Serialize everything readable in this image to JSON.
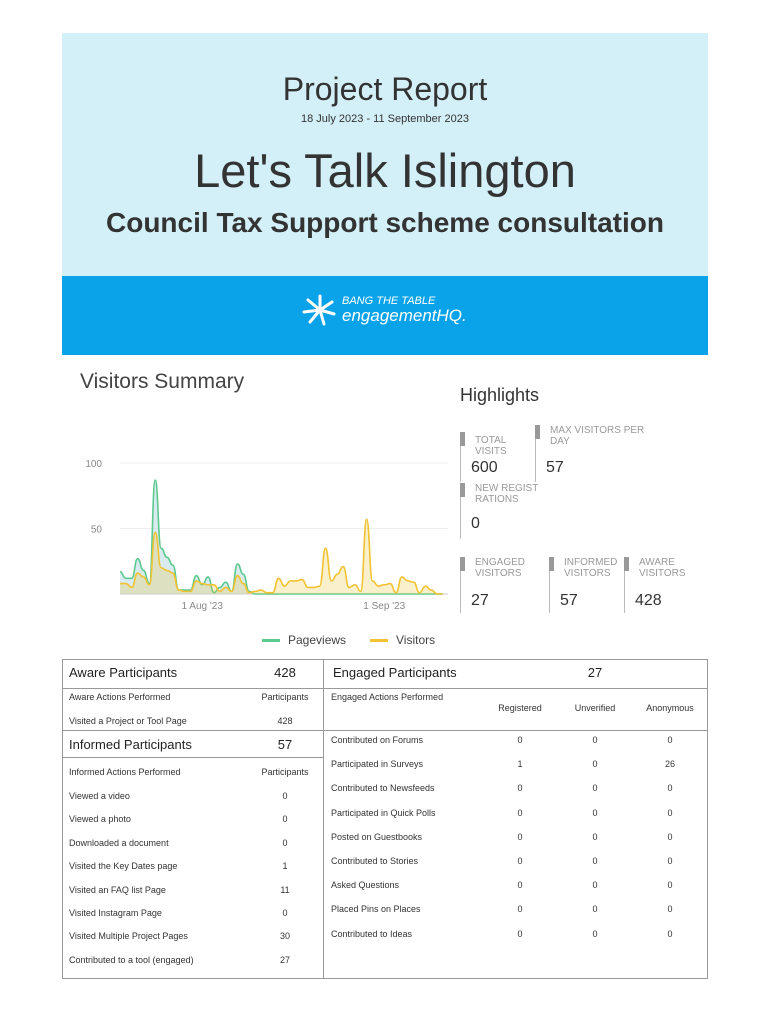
{
  "header": {
    "title": "Project Report",
    "date_range": "18 July 2023 - 11 September 2023",
    "project": "Let's Talk Islington",
    "subtitle": "Council Tax Support scheme consultation"
  },
  "logo": {
    "line1": "BANG THE TABLE",
    "line2": "engagementHQ."
  },
  "visitors_summary": {
    "title": "Visitors Summary"
  },
  "chart_data": {
    "type": "area",
    "title": "Visitors Summary",
    "ylim": [
      0,
      100
    ],
    "yticks": [
      "100",
      "50"
    ],
    "xticks": [
      {
        "label": "1 Aug '23",
        "day": 14
      },
      {
        "label": "1 Sep '23",
        "day": 45
      }
    ],
    "start": "2023-07-18",
    "series": [
      {
        "name": "Pageviews",
        "color": "#5cc98f",
        "values": [
          17,
          12,
          12,
          27,
          18,
          8,
          87,
          35,
          28,
          22,
          3,
          3,
          3,
          14,
          7,
          13,
          1,
          5,
          9,
          2,
          23,
          15,
          2,
          0,
          0,
          0,
          0,
          0,
          0,
          0,
          0,
          0,
          0,
          0,
          0,
          0,
          0,
          0,
          0,
          0,
          0,
          0,
          0,
          0,
          0,
          0,
          0,
          0,
          0,
          0,
          0,
          0,
          0,
          0,
          0,
          0
        ]
      },
      {
        "name": "Visitors",
        "color": "#f1c232",
        "values": [
          8,
          8,
          5,
          16,
          13,
          7,
          47,
          20,
          18,
          16,
          3,
          2,
          2,
          10,
          8,
          7,
          7,
          2,
          5,
          2,
          14,
          8,
          1,
          2,
          3,
          1,
          1,
          12,
          6,
          10,
          10,
          11,
          5,
          5,
          6,
          35,
          10,
          15,
          21,
          5,
          7,
          2,
          57,
          10,
          6,
          7,
          8,
          1,
          13,
          10,
          9,
          1,
          6,
          3,
          0,
          0
        ]
      }
    ]
  },
  "highlights": {
    "title": "Highlights",
    "items": [
      {
        "label": "Total Visits",
        "value": "600"
      },
      {
        "label": "Max Visitors Per Day",
        "value": "57"
      },
      {
        "label": "New Registrations",
        "value": "0"
      },
      {
        "label": "Engaged Visitors",
        "value": "27"
      },
      {
        "label": "Informed Visitors",
        "value": "57"
      },
      {
        "label": "Aware Visitors",
        "value": "428"
      }
    ]
  },
  "aware": {
    "title": "Aware Participants",
    "count": "428",
    "col1": "Aware Actions Performed",
    "col2": "Participants",
    "rows": [
      {
        "action": "Visited a Project or Tool Page",
        "value": "428"
      }
    ]
  },
  "informed": {
    "title": "Informed Participants",
    "count": "57",
    "col1": "Informed Actions Performed",
    "col2": "Participants",
    "rows": [
      {
        "action": "Viewed a video",
        "value": "0"
      },
      {
        "action": "Viewed a photo",
        "value": "0"
      },
      {
        "action": "Downloaded a document",
        "value": "0"
      },
      {
        "action": "Visited the Key Dates page",
        "value": "1"
      },
      {
        "action": "Visited an FAQ list Page",
        "value": "11"
      },
      {
        "action": "Visited Instagram Page",
        "value": "0"
      },
      {
        "action": "Visited Multiple Project Pages",
        "value": "30"
      },
      {
        "action": "Contributed to a tool (engaged)",
        "value": "27"
      }
    ]
  },
  "engaged": {
    "title": "Engaged Participants",
    "count": "27",
    "col1": "Engaged Actions Performed",
    "cols": [
      "Registered",
      "Unverified",
      "Anonymous"
    ],
    "rows": [
      {
        "action": "Contributed on Forums",
        "v": [
          "0",
          "0",
          "0"
        ]
      },
      {
        "action": "Participated in Surveys",
        "v": [
          "1",
          "0",
          "26"
        ]
      },
      {
        "action": "Contributed to Newsfeeds",
        "v": [
          "0",
          "0",
          "0"
        ]
      },
      {
        "action": "Participated in Quick Polls",
        "v": [
          "0",
          "0",
          "0"
        ]
      },
      {
        "action": "Posted on Guestbooks",
        "v": [
          "0",
          "0",
          "0"
        ]
      },
      {
        "action": "Contributed to Stories",
        "v": [
          "0",
          "0",
          "0"
        ]
      },
      {
        "action": "Asked Questions",
        "v": [
          "0",
          "0",
          "0"
        ]
      },
      {
        "action": "Placed Pins on Places",
        "v": [
          "0",
          "0",
          "0"
        ]
      },
      {
        "action": "Contributed to Ideas",
        "v": [
          "0",
          "0",
          "0"
        ]
      }
    ]
  }
}
